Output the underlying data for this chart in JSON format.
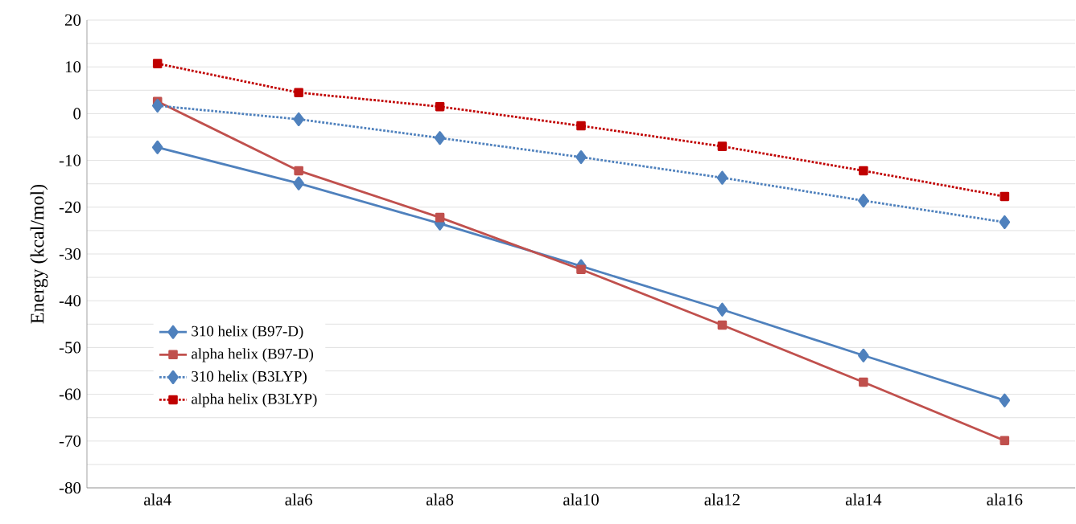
{
  "chart_data": {
    "type": "line",
    "ylabel": "Energy  (kcal/mol)",
    "categories": [
      "ala4",
      "ala6",
      "ala8",
      "ala10",
      "ala12",
      "ala14",
      "ala16"
    ],
    "series": [
      {
        "name": "310 helix (B97-D)",
        "color": "#4f81bd",
        "marker": "diamond",
        "line_style": "solid",
        "values": [
          -7.2,
          -14.9,
          -23.5,
          -32.6,
          -41.9,
          -51.7,
          -61.3
        ]
      },
      {
        "name": "alpha helix (B97-D)",
        "color": "#c0504d",
        "marker": "square",
        "line_style": "solid",
        "values": [
          2.6,
          -12.2,
          -22.2,
          -33.3,
          -45.2,
          -57.4,
          -69.9
        ]
      },
      {
        "name": "310 helix (B3LYP)",
        "color": "#4f81bd",
        "marker": "diamond",
        "line_style": "dotted",
        "values": [
          1.7,
          -1.2,
          -5.2,
          -9.3,
          -13.7,
          -18.6,
          -23.2
        ]
      },
      {
        "name": "alpha helix (B3LYP)",
        "color": "#c00000",
        "marker": "square",
        "line_style": "dotted",
        "values": [
          10.7,
          4.5,
          1.5,
          -2.6,
          -7.0,
          -12.2,
          -17.7
        ]
      }
    ],
    "ylim": [
      -80,
      20
    ],
    "yticks": [
      -80,
      {
        "value": -75,
        "label": null
      },
      -70,
      {
        "value": -65,
        "label": null
      },
      -60,
      {
        "value": -55,
        "label": null
      },
      -50,
      {
        "value": -45,
        "label": null
      },
      -40,
      {
        "value": -35,
        "label": null
      },
      -30,
      {
        "value": -25,
        "label": null
      },
      -20,
      {
        "value": -15,
        "label": null
      },
      -10,
      {
        "value": -5,
        "label": null
      },
      0,
      {
        "value": 5,
        "label": null
      },
      10,
      {
        "value": 15,
        "label": null
      },
      20
    ],
    "grid": "y",
    "legend": "bottom left"
  }
}
